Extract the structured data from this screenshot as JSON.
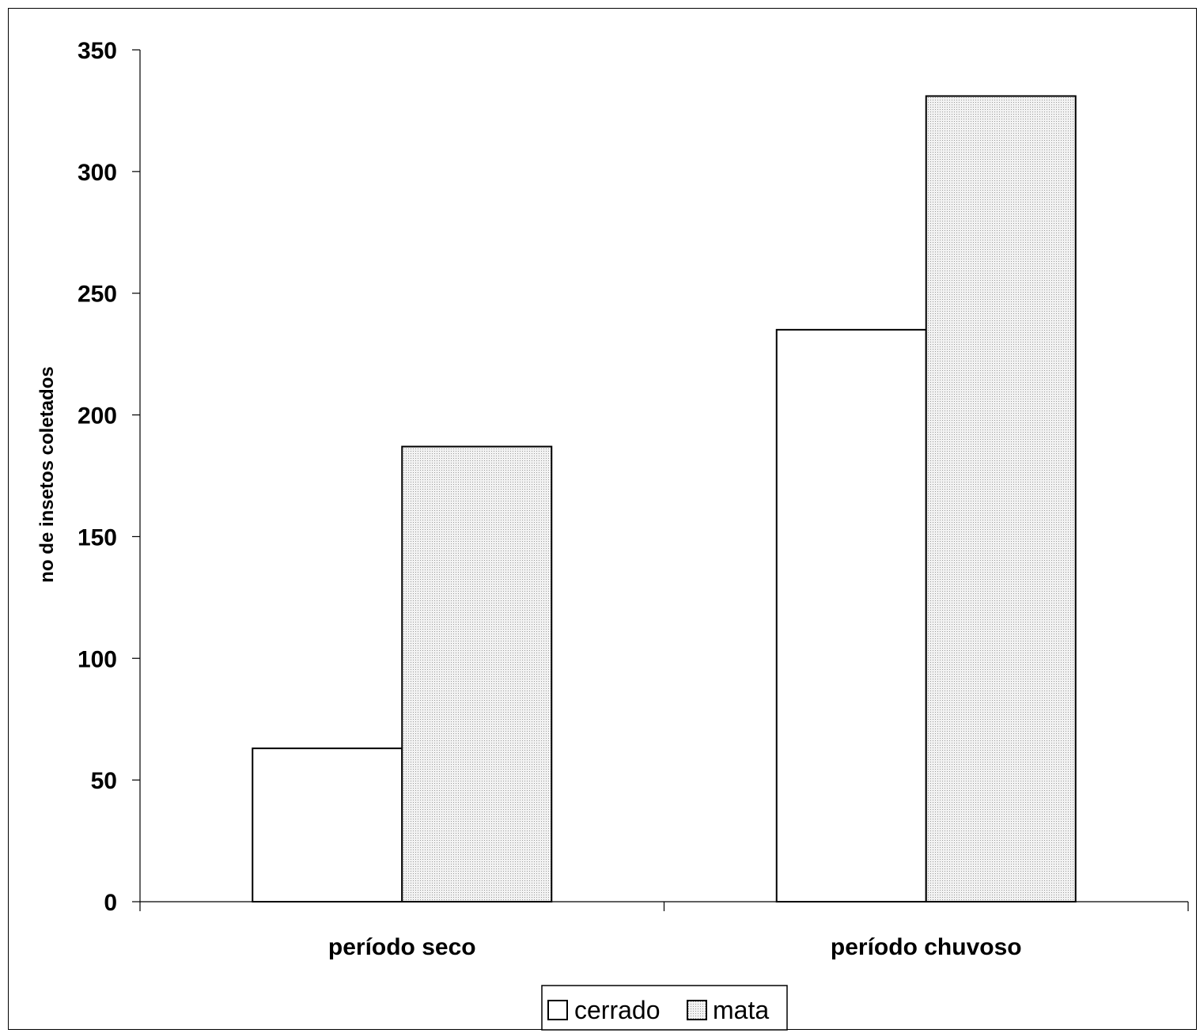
{
  "chart_data": {
    "type": "bar",
    "title": "",
    "xlabel": "",
    "ylabel": "no de insetos coletados",
    "categories": [
      "período seco",
      "período chuvoso"
    ],
    "series": [
      {
        "name": "cerrado",
        "values": [
          63,
          235
        ],
        "fill": "#ffffff"
      },
      {
        "name": "mata",
        "values": [
          187,
          331
        ],
        "fill": "#e6e6e6"
      }
    ],
    "ylim": [
      0,
      350
    ],
    "yticks": [
      0,
      50,
      100,
      150,
      200,
      250,
      300,
      350
    ],
    "grid": false,
    "legend_position": "bottom-center"
  }
}
